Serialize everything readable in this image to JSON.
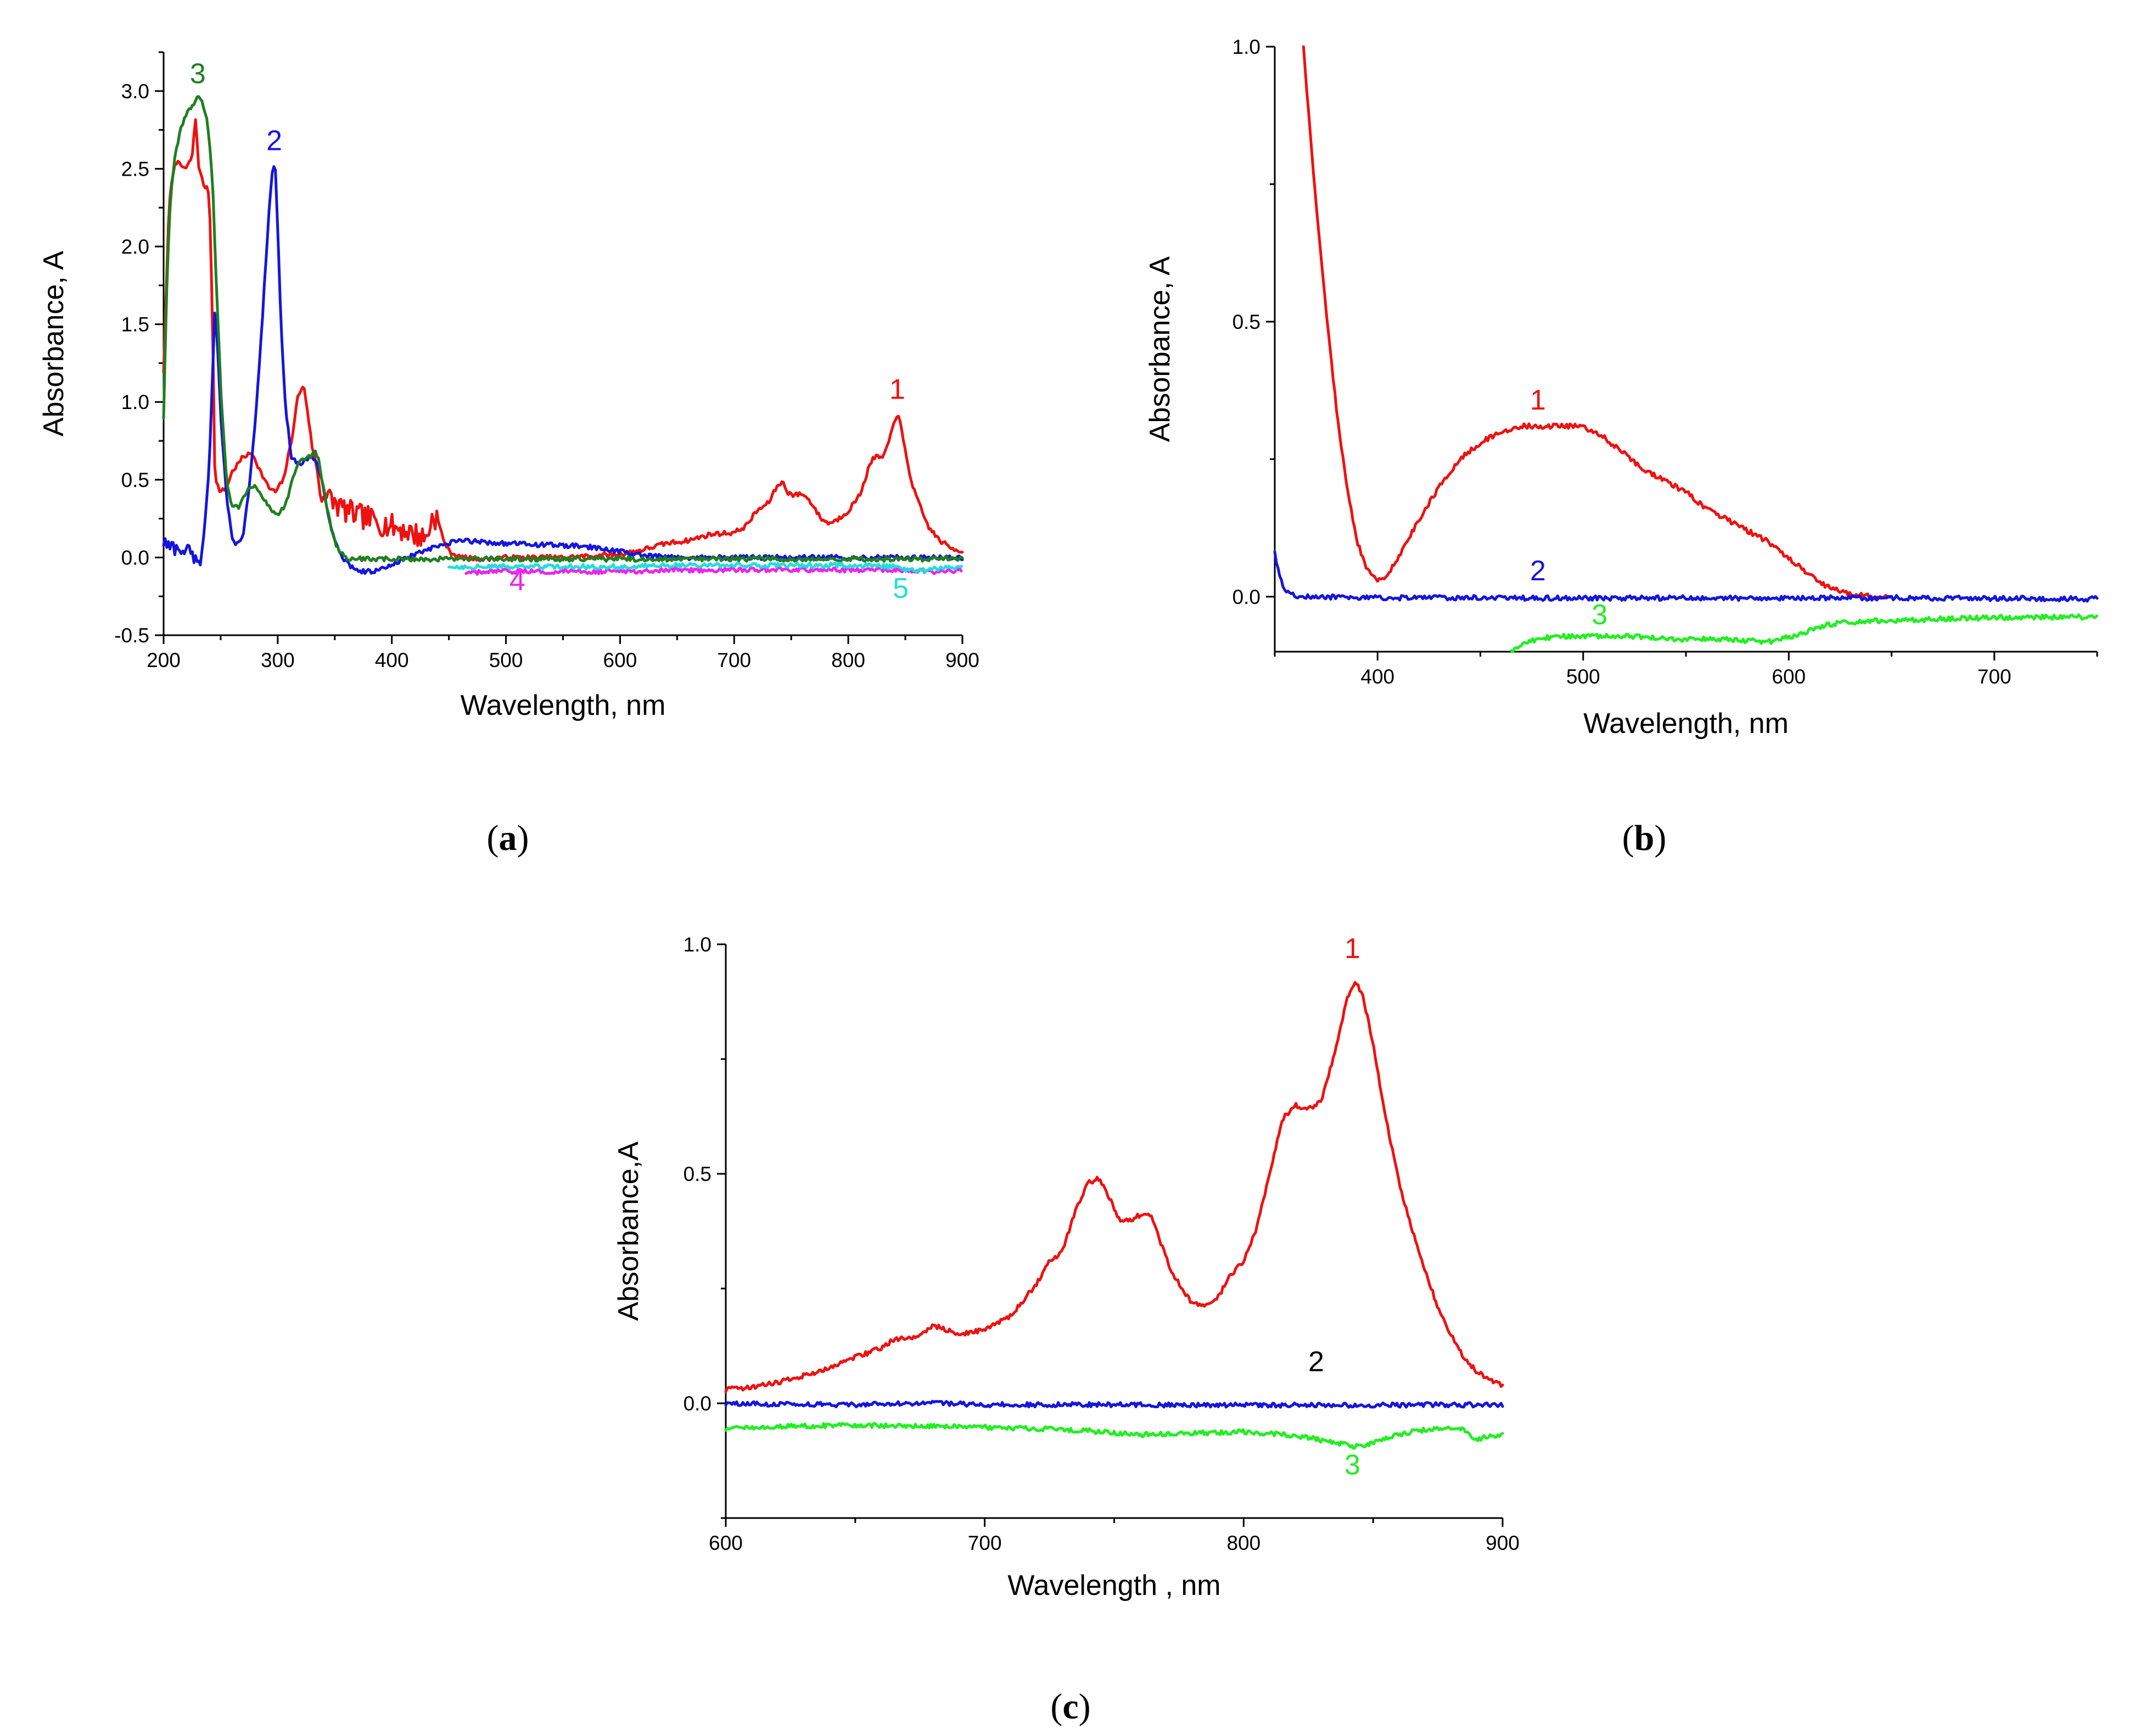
{
  "figure": {
    "panel_labels": [
      {
        "letter": "a"
      },
      {
        "letter": "b"
      },
      {
        "letter": "c"
      }
    ]
  },
  "colors": {
    "red": "#ee1111",
    "blue": "#1515dd",
    "dark_green": "#1f7f1f",
    "green": "#22ee22",
    "magenta": "#ee22ee",
    "cyan": "#22dddd",
    "black": "#000000"
  },
  "chart_data": [
    {
      "type": "line",
      "panel": "a",
      "xlabel": "Wavelength, nm",
      "ylabel": "Absorbance, A",
      "xlim": [
        200,
        900
      ],
      "ylim": [
        -0.5,
        3.25
      ],
      "xticks": [
        200,
        300,
        400,
        500,
        600,
        700,
        800,
        900
      ],
      "yticks": [
        -0.5,
        0.0,
        0.5,
        1.0,
        1.5,
        2.0,
        2.5,
        3.0
      ],
      "ytick_labels": [
        "-0.5",
        "0.0",
        "0.5",
        "1.0",
        "1.5",
        "2.0",
        "2.5",
        "3.0"
      ],
      "series": [
        {
          "name": "1",
          "color": "red",
          "label_at": [
            843,
            1.02
          ],
          "noise": [
            [
              340,
              440,
              0.08
            ]
          ],
          "x": [
            200,
            205,
            210,
            215,
            220,
            225,
            228,
            231,
            235,
            240,
            243,
            245,
            250,
            255,
            260,
            270,
            278,
            285,
            292,
            298,
            305,
            312,
            318,
            323,
            326,
            330,
            335,
            338,
            340,
            345,
            350,
            360,
            370,
            380,
            390,
            400,
            410,
            420,
            430,
            436,
            440,
            445,
            450,
            460,
            480,
            500,
            550,
            600,
            620,
            640,
            660,
            680,
            700,
            710,
            720,
            730,
            737,
            742,
            747,
            752,
            760,
            768,
            775,
            782,
            790,
            800,
            810,
            820,
            825,
            830,
            835,
            840,
            843,
            846,
            850,
            855,
            860,
            870,
            880,
            890,
            900
          ],
          "y": [
            1.2,
            2.3,
            2.55,
            2.52,
            2.5,
            2.58,
            2.82,
            2.5,
            2.4,
            2.35,
            1.5,
            0.5,
            0.42,
            0.45,
            0.55,
            0.65,
            0.67,
            0.55,
            0.45,
            0.42,
            0.5,
            0.75,
            1.05,
            1.1,
            0.95,
            0.72,
            0.55,
            0.35,
            0.4,
            0.38,
            0.35,
            0.3,
            0.27,
            0.25,
            0.22,
            0.2,
            0.18,
            0.15,
            0.12,
            0.27,
            0.25,
            0.12,
            0.04,
            0.0,
            -0.01,
            0.0,
            0.0,
            0.02,
            0.05,
            0.09,
            0.11,
            0.15,
            0.16,
            0.2,
            0.3,
            0.35,
            0.45,
            0.49,
            0.42,
            0.4,
            0.41,
            0.35,
            0.26,
            0.22,
            0.24,
            0.3,
            0.4,
            0.62,
            0.65,
            0.64,
            0.72,
            0.88,
            0.92,
            0.85,
            0.68,
            0.5,
            0.38,
            0.2,
            0.11,
            0.06,
            0.04
          ]
        },
        {
          "name": "2",
          "color": "blue",
          "label_at": [
            297,
            2.62
          ],
          "noise": [
            [
              200,
              228,
              0.05
            ]
          ],
          "x": [
            200,
            205,
            210,
            215,
            220,
            225,
            228,
            232,
            236,
            240,
            243,
            245,
            247,
            250,
            255,
            260,
            265,
            270,
            275,
            280,
            285,
            290,
            293,
            296,
            298,
            300,
            303,
            307,
            312,
            318,
            325,
            330,
            335,
            340,
            345,
            350,
            355,
            360,
            365,
            370,
            375,
            380,
            390,
            400,
            420,
            440,
            460,
            480,
            500,
            540,
            570,
            600,
            620,
            650,
            700,
            750,
            800,
            850,
            900
          ],
          "y": [
            0.1,
            0.07,
            0.06,
            0.05,
            0.05,
            0.03,
            0.0,
            -0.05,
            0.2,
            0.6,
            1.2,
            1.62,
            1.4,
            0.9,
            0.4,
            0.12,
            0.08,
            0.15,
            0.45,
            0.85,
            1.35,
            1.95,
            2.3,
            2.52,
            2.48,
            2.1,
            1.5,
            0.95,
            0.65,
            0.6,
            0.62,
            0.65,
            0.6,
            0.45,
            0.25,
            0.1,
            0.02,
            -0.03,
            -0.06,
            -0.08,
            -0.09,
            -0.09,
            -0.08,
            -0.05,
            0.02,
            0.07,
            0.11,
            0.1,
            0.09,
            0.08,
            0.07,
            0.04,
            0.01,
            0.0,
            0.0,
            0.0,
            0.0,
            0.0,
            0.0
          ]
        },
        {
          "name": "3",
          "color": "dark_green",
          "label_at": [
            230,
            3.05
          ],
          "x": [
            200,
            203,
            206,
            210,
            215,
            220,
            225,
            228,
            231,
            234,
            237,
            240,
            243,
            246,
            250,
            255,
            260,
            265,
            270,
            275,
            280,
            285,
            290,
            295,
            300,
            305,
            310,
            315,
            320,
            325,
            330,
            333,
            336,
            340,
            345,
            350,
            355,
            360,
            370,
            380,
            400,
            450,
            500,
            600,
            700,
            800,
            900
          ],
          "y": [
            0.9,
            1.8,
            2.3,
            2.6,
            2.75,
            2.85,
            2.9,
            2.94,
            2.96,
            2.93,
            2.85,
            2.7,
            2.4,
            1.8,
            1.1,
            0.5,
            0.33,
            0.32,
            0.38,
            0.45,
            0.47,
            0.42,
            0.35,
            0.3,
            0.28,
            0.32,
            0.42,
            0.55,
            0.62,
            0.64,
            0.66,
            0.68,
            0.62,
            0.45,
            0.25,
            0.1,
            0.03,
            0.0,
            -0.01,
            -0.01,
            -0.01,
            -0.01,
            -0.01,
            -0.01,
            -0.01,
            -0.01,
            -0.01
          ]
        },
        {
          "name": "4",
          "color": "magenta",
          "label_at": [
            510,
            -0.21
          ],
          "x": [
            465,
            500,
            550,
            600,
            650,
            700,
            750,
            800,
            850,
            875,
            900
          ],
          "y": [
            -0.1,
            -0.09,
            -0.09,
            -0.09,
            -0.08,
            -0.08,
            -0.08,
            -0.08,
            -0.08,
            -0.09,
            -0.08
          ]
        },
        {
          "name": "5",
          "color": "cyan",
          "label_at": [
            846,
            -0.26
          ],
          "x": [
            450,
            500,
            550,
            600,
            650,
            700,
            750,
            800,
            840,
            860,
            880,
            890,
            900
          ],
          "y": [
            -0.06,
            -0.06,
            -0.06,
            -0.06,
            -0.05,
            -0.05,
            -0.05,
            -0.05,
            -0.06,
            -0.09,
            -0.07,
            -0.06,
            -0.06
          ]
        }
      ]
    },
    {
      "type": "line",
      "panel": "b",
      "xlabel": "Wavelength, nm",
      "ylabel": "Absorbance, A",
      "xlim": [
        350,
        750
      ],
      "ylim": [
        -0.1,
        1.0
      ],
      "xticks": [
        400,
        500,
        600,
        700
      ],
      "yticks": [
        0.0,
        0.5,
        1.0
      ],
      "ytick_labels": [
        "0.0",
        "0.5",
        "1.0"
      ],
      "series": [
        {
          "name": "1",
          "color": "red",
          "label_at": [
            478,
            0.34
          ],
          "x": [
            364,
            366,
            370,
            375,
            380,
            385,
            390,
            395,
            400,
            405,
            410,
            420,
            430,
            440,
            450,
            460,
            470,
            480,
            490,
            500,
            510,
            520,
            530,
            540,
            550,
            560,
            570,
            580,
            590,
            600,
            610,
            620,
            630,
            640,
            650
          ],
          "y": [
            1.0,
            0.9,
            0.72,
            0.52,
            0.34,
            0.2,
            0.1,
            0.05,
            0.03,
            0.04,
            0.07,
            0.14,
            0.2,
            0.25,
            0.28,
            0.3,
            0.31,
            0.31,
            0.31,
            0.31,
            0.29,
            0.26,
            0.23,
            0.21,
            0.19,
            0.16,
            0.14,
            0.12,
            0.1,
            0.07,
            0.04,
            0.015,
            0.005,
            0.0,
            0.0
          ]
        },
        {
          "name": "2",
          "color": "blue",
          "label_at": [
            478,
            0.03
          ],
          "x": [
            350,
            352,
            355,
            358,
            362,
            370,
            400,
            450,
            500,
            550,
            600,
            650,
            700,
            750
          ],
          "y": [
            0.08,
            0.04,
            0.01,
            0.003,
            0.0,
            0.0,
            -0.002,
            -0.002,
            -0.003,
            -0.002,
            -0.003,
            -0.002,
            -0.003,
            -0.004
          ]
        },
        {
          "name": "3",
          "color": "green",
          "label_at": [
            508,
            -0.05
          ],
          "x": [
            465,
            470,
            480,
            490,
            500,
            510,
            520,
            530,
            540,
            550,
            560,
            570,
            580,
            590,
            600,
            610,
            620,
            640,
            660,
            680,
            700,
            720,
            740,
            750
          ],
          "y": [
            -0.1,
            -0.085,
            -0.075,
            -0.072,
            -0.071,
            -0.071,
            -0.072,
            -0.074,
            -0.077,
            -0.078,
            -0.076,
            -0.077,
            -0.08,
            -0.082,
            -0.074,
            -0.062,
            -0.05,
            -0.044,
            -0.042,
            -0.04,
            -0.038,
            -0.037,
            -0.037,
            -0.038
          ]
        }
      ]
    },
    {
      "type": "line",
      "panel": "c",
      "xlabel": "Wavelength , nm",
      "ylabel": "Absorbance,A",
      "xlim": [
        600,
        900
      ],
      "ylim": [
        -0.25,
        1.0
      ],
      "xticks": [
        600,
        700,
        800,
        900
      ],
      "yticks": [
        0.0,
        0.5,
        1.0
      ],
      "ytick_labels": [
        "0.0",
        "0.5",
        "1.0"
      ],
      "series": [
        {
          "name": "1",
          "color": "red",
          "label_at": [
            842,
            0.97
          ],
          "x": [
            600,
            610,
            620,
            630,
            640,
            650,
            660,
            665,
            670,
            675,
            680,
            685,
            690,
            700,
            710,
            720,
            725,
            730,
            735,
            740,
            744,
            748,
            752,
            756,
            760,
            764,
            768,
            772,
            776,
            780,
            785,
            790,
            795,
            800,
            805,
            810,
            815,
            820,
            825,
            830,
            835,
            840,
            843,
            846,
            850,
            855,
            860,
            865,
            870,
            875,
            880,
            885,
            890,
            895,
            900
          ],
          "y": [
            0.03,
            0.035,
            0.045,
            0.06,
            0.075,
            0.1,
            0.12,
            0.14,
            0.14,
            0.15,
            0.17,
            0.16,
            0.15,
            0.16,
            0.19,
            0.26,
            0.31,
            0.33,
            0.42,
            0.48,
            0.49,
            0.45,
            0.4,
            0.4,
            0.41,
            0.41,
            0.35,
            0.29,
            0.25,
            0.22,
            0.21,
            0.23,
            0.28,
            0.31,
            0.38,
            0.5,
            0.62,
            0.65,
            0.64,
            0.66,
            0.76,
            0.88,
            0.92,
            0.89,
            0.78,
            0.62,
            0.48,
            0.38,
            0.29,
            0.21,
            0.15,
            0.1,
            0.07,
            0.05,
            0.04
          ]
        },
        {
          "name": "2",
          "color": "blue",
          "label_color": "black",
          "label_at": [
            828,
            0.07
          ],
          "x": [
            600,
            620,
            650,
            680,
            700,
            750,
            800,
            850,
            880,
            900
          ],
          "y": [
            0.0,
            -0.002,
            -0.003,
            0.0,
            -0.003,
            -0.003,
            -0.004,
            -0.004,
            -0.003,
            -0.004
          ]
        },
        {
          "name": "3",
          "color": "green",
          "label_at": [
            842,
            -0.155
          ],
          "x": [
            600,
            620,
            650,
            680,
            700,
            720,
            740,
            750,
            760,
            780,
            800,
            820,
            830,
            838,
            843,
            848,
            855,
            865,
            875,
            885,
            890,
            895,
            900
          ],
          "y": [
            -0.055,
            -0.05,
            -0.048,
            -0.05,
            -0.052,
            -0.055,
            -0.06,
            -0.065,
            -0.068,
            -0.065,
            -0.062,
            -0.07,
            -0.08,
            -0.088,
            -0.095,
            -0.09,
            -0.075,
            -0.062,
            -0.055,
            -0.058,
            -0.08,
            -0.07,
            -0.07
          ]
        }
      ]
    }
  ]
}
